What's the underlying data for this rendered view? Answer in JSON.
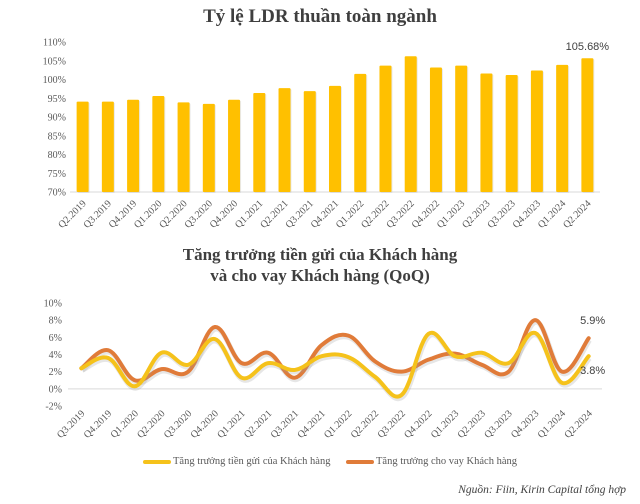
{
  "chart_data": [
    {
      "type": "bar",
      "title": "Tỷ lệ LDR thuần toàn ngành",
      "xlabel": "",
      "ylabel": "",
      "ylim": [
        70,
        110
      ],
      "yticks": [
        "70%",
        "75%",
        "80%",
        "85%",
        "90%",
        "95%",
        "100%",
        "105%",
        "110%"
      ],
      "grid": false,
      "color": "#FFC000",
      "categories": [
        "Q2.2019",
        "Q3.2019",
        "Q4.2019",
        "Q1.2020",
        "Q2.2020",
        "Q3.2020",
        "Q4.2020",
        "Q1.2021",
        "Q2.2021",
        "Q3.2021",
        "Q4.2021",
        "Q1.2022",
        "Q2.2022",
        "Q3.2022",
        "Q4.2022",
        "Q1.2023",
        "Q2.2023",
        "Q3.2023",
        "Q4.2023",
        "Q1.2024",
        "Q2.2024"
      ],
      "values": [
        94.1,
        94.1,
        94.6,
        95.6,
        93.9,
        93.5,
        94.6,
        96.4,
        97.7,
        96.9,
        98.3,
        101.5,
        103.7,
        106.2,
        103.2,
        103.7,
        101.6,
        101.2,
        102.4,
        103.9,
        105.68
      ],
      "annotations": [
        {
          "category": "Q2.2024",
          "text": "105.68%"
        }
      ]
    },
    {
      "type": "line",
      "title": "Tăng trưởng tiền gửi của Khách hàng và cho vay Khách hàng (QoQ)",
      "xlabel": "",
      "ylabel": "",
      "ylim": [
        -2,
        10
      ],
      "yticks": [
        "-2%",
        "0%",
        "2%",
        "4%",
        "6%",
        "8%",
        "10%"
      ],
      "grid": false,
      "legend_position": "bottom",
      "categories": [
        "Q3.2019",
        "Q4.2019",
        "Q1.2020",
        "Q2.2020",
        "Q3.2020",
        "Q4.2020",
        "Q1.2021",
        "Q2.2021",
        "Q3.2021",
        "Q4.2021",
        "Q1.2022",
        "Q2.2022",
        "Q3.2022",
        "Q4.2022",
        "Q1.2023",
        "Q2.2023",
        "Q3.2023",
        "Q4.2023",
        "Q1.2024",
        "Q2.2024"
      ],
      "series": [
        {
          "name": "Tăng trưởng tiền gửi của Khách hàng",
          "color": "#F5C21B",
          "values": [
            2.4,
            3.6,
            0.3,
            4.2,
            2.8,
            5.8,
            1.3,
            3.0,
            2.2,
            3.8,
            3.7,
            1.4,
            -0.7,
            6.4,
            3.8,
            4.2,
            3.0,
            6.5,
            0.7,
            3.8
          ]
        },
        {
          "name": "Tăng trưởng cho vay Khách hàng",
          "color": "#E07B39",
          "values": [
            2.4,
            4.5,
            1.0,
            2.3,
            2.0,
            7.2,
            3.0,
            4.2,
            1.3,
            5.1,
            6.2,
            3.2,
            2.0,
            3.4,
            4.1,
            2.8,
            2.0,
            8.0,
            2.0,
            5.9
          ]
        }
      ],
      "annotations": [
        {
          "series": 1,
          "category": "Q2.2024",
          "text": "5.9%"
        },
        {
          "series": 0,
          "category": "Q2.2024",
          "text": "3.8%"
        }
      ]
    }
  ],
  "titles": {
    "chart1": "Tỷ lệ LDR thuần toàn ngành",
    "chart2_line1": "Tăng trưởng tiền gửi của Khách hàng",
    "chart2_line2": "và cho vay Khách hàng (QoQ)"
  },
  "legend": {
    "deposit": "Tăng trưởng tiền gửi của Khách hàng",
    "loan": "Tăng trưởng cho vay Khách hàng"
  },
  "source": "Nguồn: Fiin, Kirin Capital tổng hợp"
}
